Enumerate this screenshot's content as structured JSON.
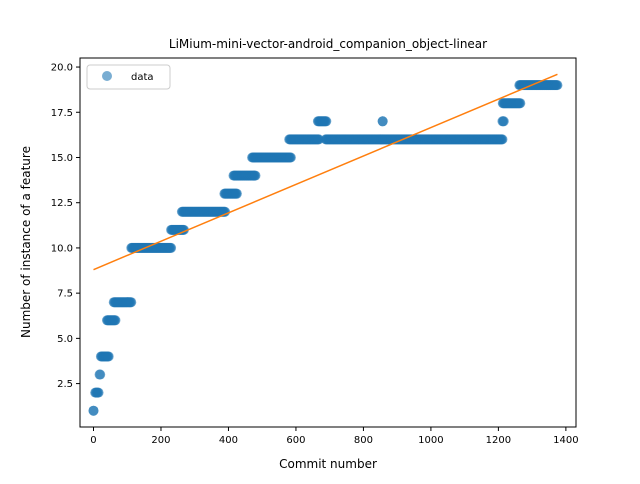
{
  "chart_data": {
    "type": "scatter",
    "title": "LiMium-mini-vector-android_companion_object-linear",
    "xlabel": "Commit number",
    "ylabel": "Number of instance of a feature",
    "xlim": [
      -40,
      1430
    ],
    "ylim": [
      0.1,
      20.5
    ],
    "xticks": [
      0,
      200,
      400,
      600,
      800,
      1000,
      1200,
      1400
    ],
    "yticks": [
      2.5,
      5.0,
      7.5,
      10.0,
      12.5,
      15.0,
      17.5,
      20.0
    ],
    "xtick_labels": [
      "0",
      "200",
      "400",
      "600",
      "800",
      "1000",
      "1200",
      "1400"
    ],
    "ytick_labels": [
      "2.5",
      "5.0",
      "7.5",
      "10.0",
      "12.5",
      "15.0",
      "17.5",
      "20.0"
    ],
    "grid": false,
    "legend": {
      "placement": "upper-left",
      "entries": [
        "data"
      ]
    },
    "colors": {
      "data": "#1f77b4",
      "fit": "#ff7f0e"
    },
    "series": [
      {
        "name": "data",
        "kind": "scatter",
        "segments": [
          {
            "x_start": 0,
            "x_end": 0,
            "y": 1
          },
          {
            "x_start": 5,
            "x_end": 15,
            "y": 2
          },
          {
            "x_start": 18,
            "x_end": 20,
            "y": 3
          },
          {
            "x_start": 22,
            "x_end": 45,
            "y": 4
          },
          {
            "x_start": 40,
            "x_end": 65,
            "y": 6
          },
          {
            "x_start": 60,
            "x_end": 112,
            "y": 7
          },
          {
            "x_start": 112,
            "x_end": 230,
            "y": 10
          },
          {
            "x_start": 230,
            "x_end": 268,
            "y": 11
          },
          {
            "x_start": 262,
            "x_end": 390,
            "y": 12
          },
          {
            "x_start": 388,
            "x_end": 425,
            "y": 13
          },
          {
            "x_start": 415,
            "x_end": 480,
            "y": 14
          },
          {
            "x_start": 470,
            "x_end": 585,
            "y": 15
          },
          {
            "x_start": 580,
            "x_end": 668,
            "y": 16
          },
          {
            "x_start": 665,
            "x_end": 690,
            "y": 17
          },
          {
            "x_start": 688,
            "x_end": 1212,
            "y": 16
          },
          {
            "x_start": 857,
            "x_end": 857,
            "y": 17
          },
          {
            "x_start": 1212,
            "x_end": 1216,
            "y": 17
          },
          {
            "x_start": 1213,
            "x_end": 1265,
            "y": 18
          },
          {
            "x_start": 1262,
            "x_end": 1375,
            "y": 19
          }
        ]
      },
      {
        "name": "",
        "kind": "line",
        "x": [
          0,
          1375
        ],
        "y": [
          8.8,
          19.6
        ]
      }
    ]
  }
}
